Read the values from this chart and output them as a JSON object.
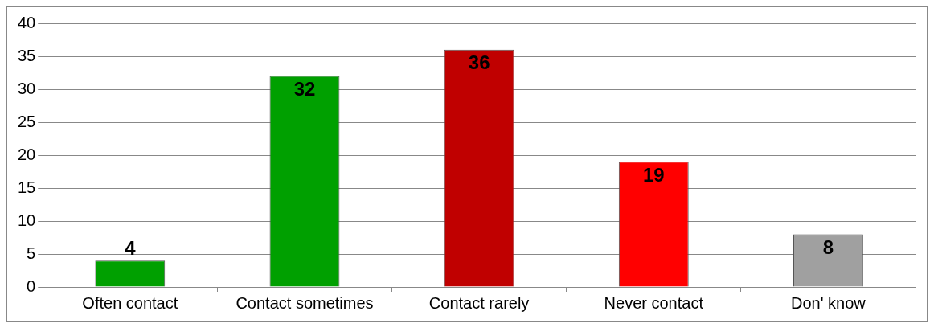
{
  "chart_data": {
    "type": "bar",
    "categories": [
      "Often contact",
      "Contact sometimes",
      "Contact rarely",
      "Never contact",
      "Don' know"
    ],
    "values": [
      4,
      32,
      36,
      19,
      8
    ],
    "colors": [
      "#00a000",
      "#00a000",
      "#c00000",
      "#ff0000",
      "#a0a0a0"
    ],
    "ylim": [
      0,
      40
    ],
    "yticks": [
      0,
      5,
      10,
      15,
      20,
      25,
      30,
      35,
      40
    ],
    "grid": "y",
    "data_labels": true,
    "legend": false
  }
}
